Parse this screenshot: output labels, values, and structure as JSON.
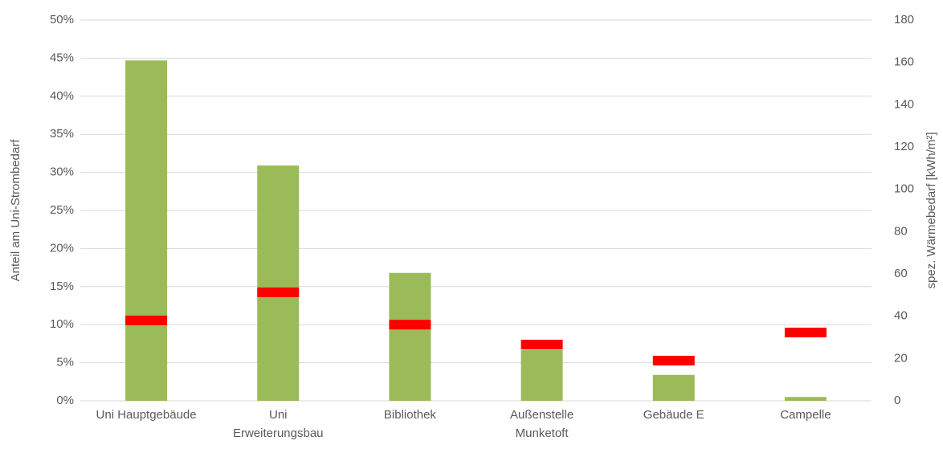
{
  "chart_data": {
    "type": "bar",
    "y_label": "Anteil am Uni-Strombedarf",
    "y2_label": "spez. Wärmebedarf [kWh/m²]",
    "categories": [
      "Uni Hauptgebäude",
      "Uni Erweiterungsbau",
      "Bibliothek",
      "Außenstelle Munketoft",
      "Gebäude E",
      "Campelle"
    ],
    "series": [
      {
        "color": "#9bbb59",
        "values": [
          44.7,
          30.9,
          16.8,
          6.7,
          3.4,
          0.5
        ]
      },
      {
        "color": "#ff0000",
        "axis": "y2",
        "values": [
          38,
          51.3,
          36,
          26.6,
          19,
          32.3
        ]
      }
    ],
    "ylim": [
      0,
      50
    ],
    "yticks": [
      {
        "value": 0,
        "label": "0%"
      },
      {
        "value": 5,
        "label": "5%"
      },
      {
        "value": 10,
        "label": "10%"
      },
      {
        "value": 15,
        "label": "15%"
      },
      {
        "value": 20,
        "label": "20%"
      },
      {
        "value": 25,
        "label": "25%"
      },
      {
        "value": 30,
        "label": "30%"
      },
      {
        "value": 35,
        "label": "35%"
      },
      {
        "value": 40,
        "label": "40%"
      },
      {
        "value": 45,
        "label": "45%"
      },
      {
        "value": 50,
        "label": "50%"
      }
    ],
    "y2lim": [
      0,
      180
    ],
    "y2ticks": [
      0,
      20,
      40,
      60,
      80,
      100,
      120,
      140,
      160,
      180
    ],
    "grid": true
  }
}
